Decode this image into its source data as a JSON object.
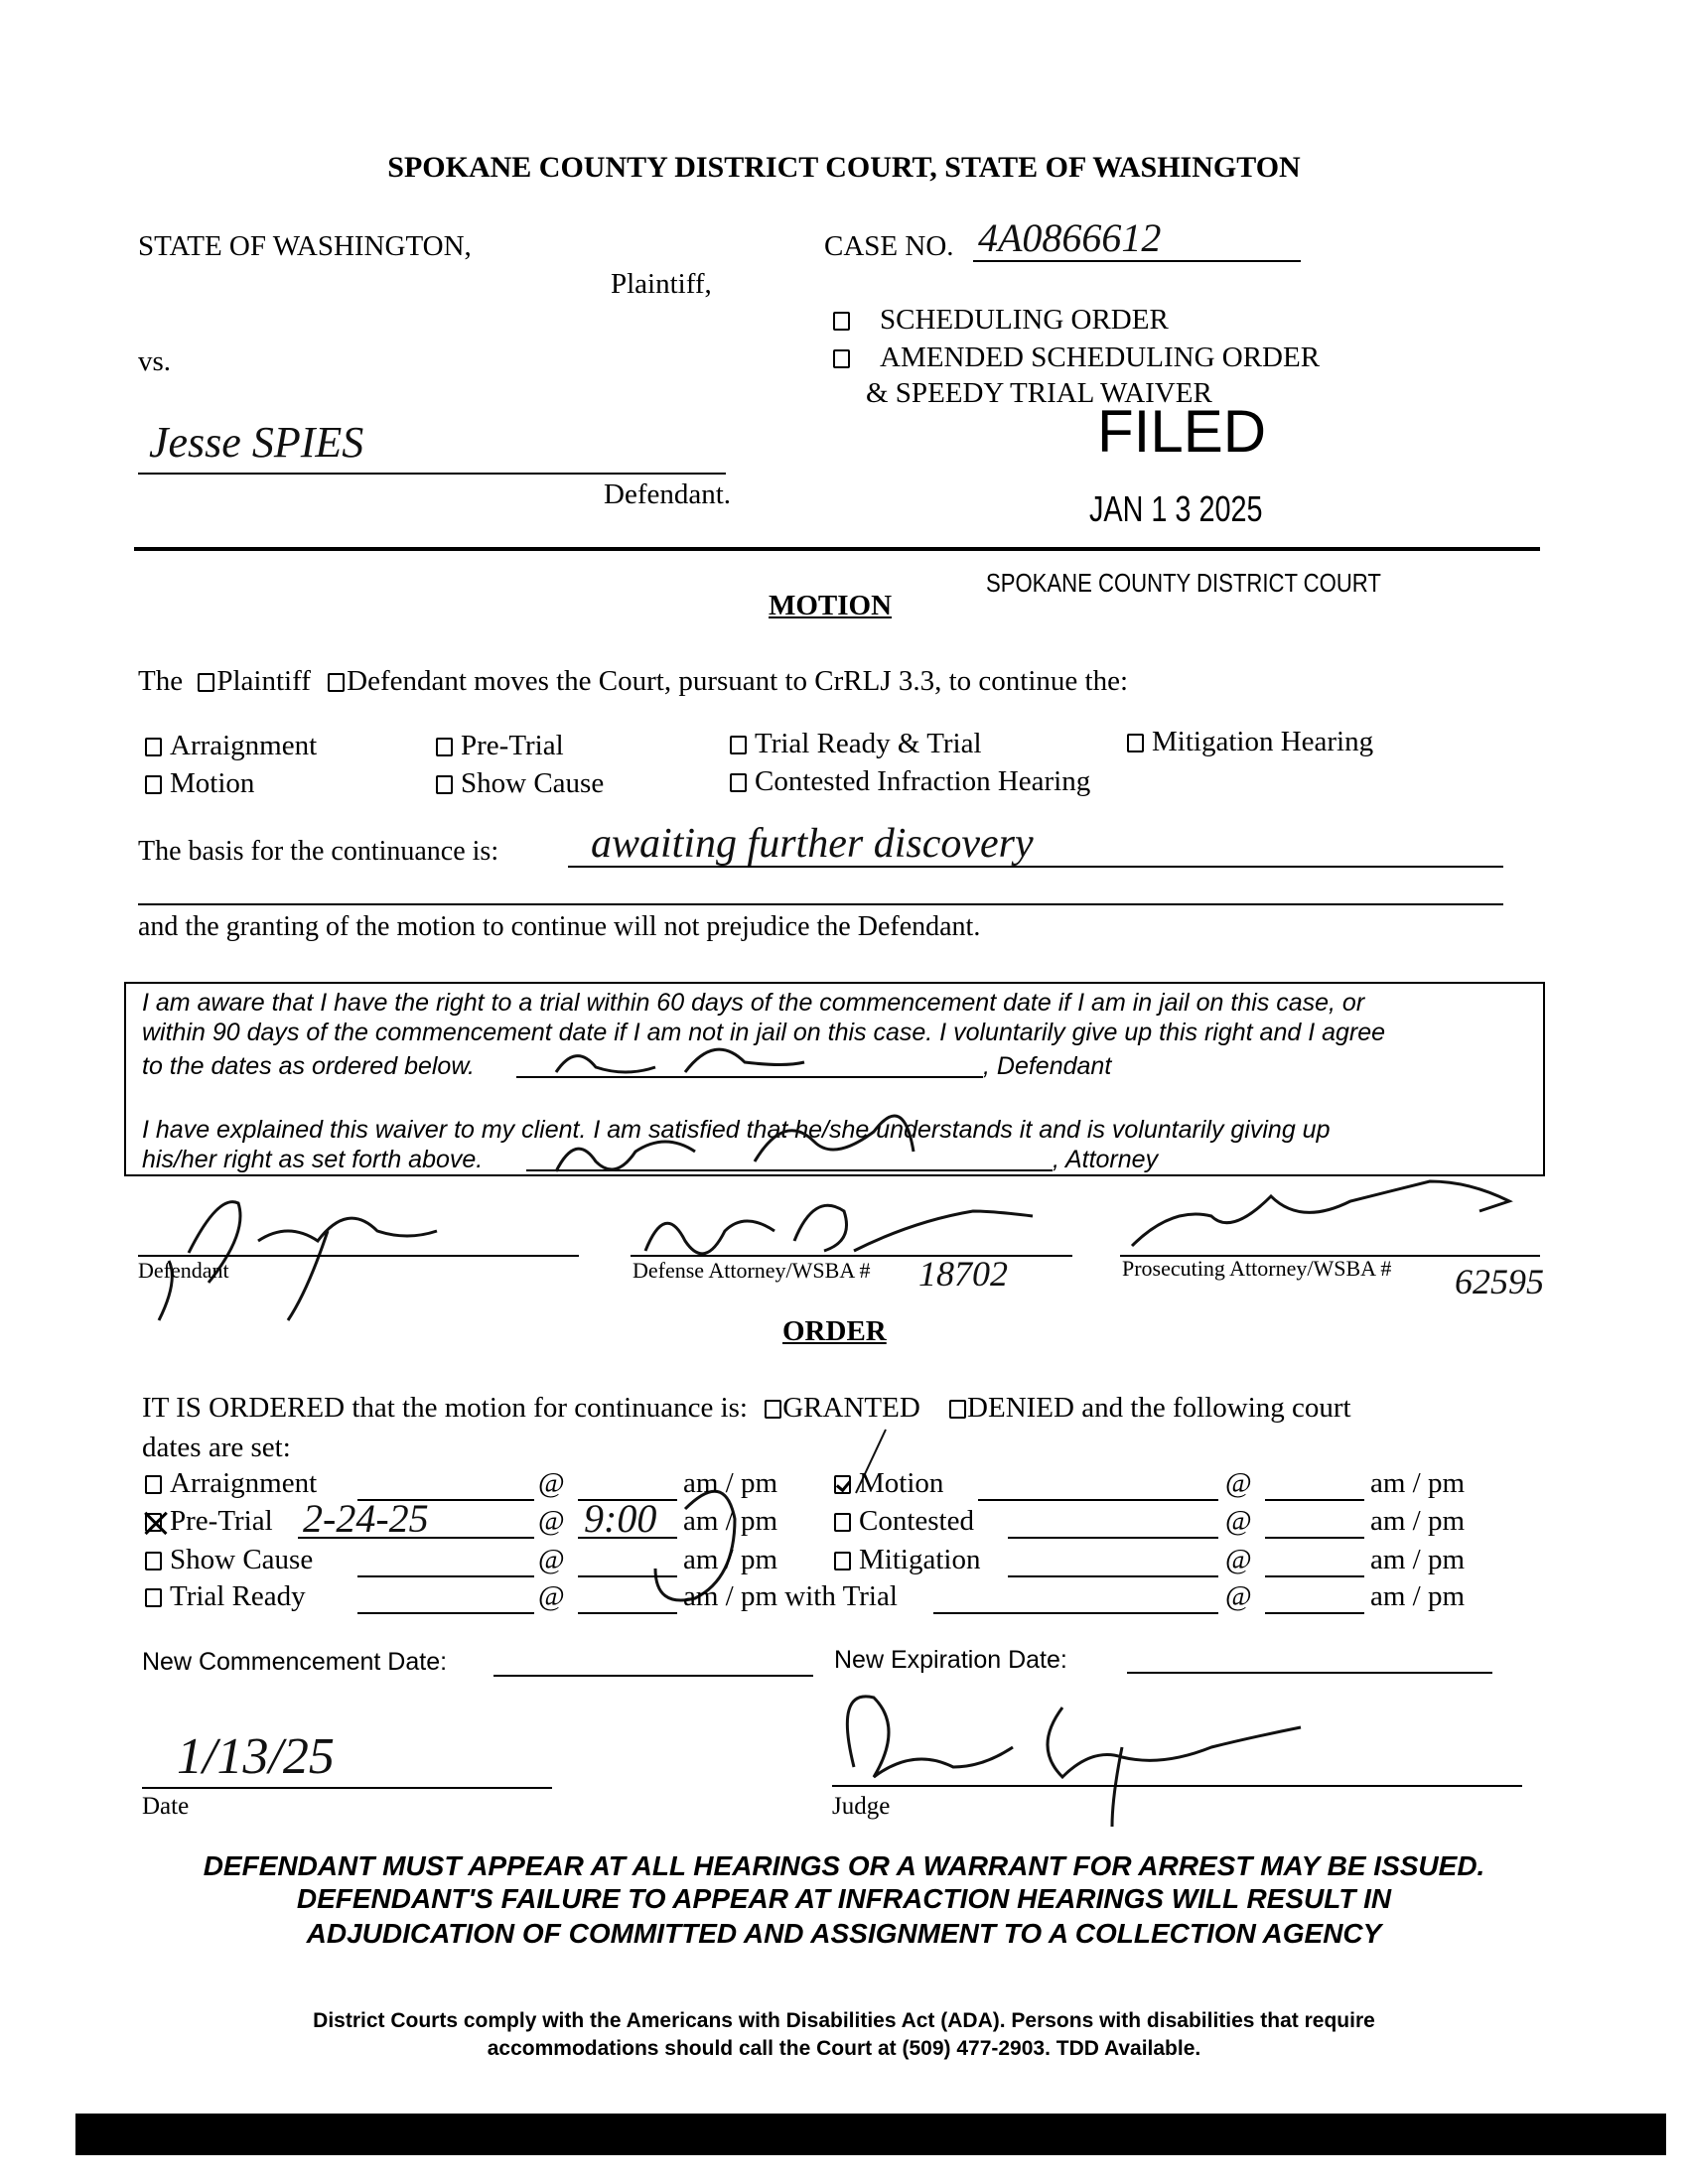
{
  "court_title": "SPOKANE COUNTY DISTRICT COURT, STATE OF WASHINGTON",
  "caption": {
    "plaintiff_name": "STATE OF WASHINGTON,",
    "plaintiff_label": "Plaintiff,",
    "vs": "vs.",
    "defendant_name": "Jesse SPIES",
    "defendant_label": "Defendant.",
    "case_no_label": "CASE NO.",
    "case_no": "4A0866612"
  },
  "order_type": {
    "options": [
      {
        "label": "SCHEDULING ORDER",
        "checked": false
      },
      {
        "label": "AMENDED SCHEDULING ORDER",
        "checked": false
      }
    ],
    "sublabel": "& SPEEDY TRIAL WAIVER"
  },
  "stamp": {
    "filed": "FILED",
    "date": "JAN 1 3 2025",
    "court": "SPOKANE COUNTY DISTRICT COURT"
  },
  "motion": {
    "heading": "MOTION",
    "intro_the": "The",
    "plaintiff": "Plaintiff",
    "defendant": "Defendant moves the Court, pursuant to CrRLJ 3.3, to continue the:",
    "hearings": [
      {
        "label": "Arraignment",
        "checked": false
      },
      {
        "label": "Pre-Trial",
        "checked": false
      },
      {
        "label": "Trial Ready & Trial",
        "checked": false
      },
      {
        "label": "Mitigation Hearing",
        "checked": false
      },
      {
        "label": "Motion",
        "checked": false
      },
      {
        "label": "Show Cause",
        "checked": false
      },
      {
        "label": "Contested Infraction Hearing",
        "checked": false
      }
    ],
    "basis_label": "The basis for the continuance is:",
    "basis_value": "awaiting further discovery",
    "prejudice_text": "and the granting of the motion to continue will not prejudice the Defendant."
  },
  "waiver": {
    "line1": "I am aware that I have the right to a trial within 60 days of the commencement date if I am in jail on this case, or",
    "line2": "within 90 days of the commencement date if I am not in jail on this case.  I voluntarily give up this right and I agree",
    "line3": "to the dates as ordered below.",
    "defendant_suffix": ", Defendant",
    "line4": "I have explained this waiver to my client.  I am satisfied that he/she understands it and is voluntarily giving up",
    "line5": "his/her right as set forth above.",
    "attorney_suffix": ", Attorney"
  },
  "signatures": {
    "defendant_label": "Defendant",
    "defense_label": "Defense Attorney/WSBA #",
    "defense_wsba": "18702",
    "prosecutor_label": "Prosecuting Attorney/WSBA #",
    "prosecutor_wsba": "62595"
  },
  "order": {
    "heading": "ORDER",
    "ordered_text": "IT IS ORDERED that the motion for continuance is:",
    "granted": "GRANTED",
    "denied": "DENIED and the following court",
    "dates_text": "dates are set:",
    "at": "@",
    "ampm": "am / pm",
    "with_trial": "am / pm with Trial",
    "left_rows": [
      {
        "label": "Arraignment",
        "checked": false,
        "date": "",
        "time": ""
      },
      {
        "label": "Pre-Trial",
        "checked": true,
        "date": "2-24-25",
        "time": "9:00"
      },
      {
        "label": "Show Cause",
        "checked": false,
        "date": "",
        "time": ""
      },
      {
        "label": "Trial Ready",
        "checked": false,
        "date": "",
        "time": ""
      }
    ],
    "right_rows": [
      {
        "label": "Motion",
        "checked": true,
        "date": "",
        "time": ""
      },
      {
        "label": "Contested",
        "checked": false,
        "date": "",
        "time": ""
      },
      {
        "label": "Mitigation",
        "checked": false,
        "date": "",
        "time": ""
      }
    ],
    "commencement_label": "New Commencement Date:",
    "commencement_value": "",
    "expiration_label": "New Expiration Date:",
    "expiration_value": "",
    "date_label": "Date",
    "date_value": "1/13/25",
    "judge_label": "Judge"
  },
  "warning": [
    "DEFENDANT MUST APPEAR AT ALL HEARINGS OR A WARRANT FOR ARREST MAY BE ISSUED.",
    "DEFENDANT'S FAILURE TO APPEAR AT INFRACTION HEARINGS WILL RESULT IN",
    "ADJUDICATION OF COMMITTED AND ASSIGNMENT TO A COLLECTION AGENCY"
  ],
  "ada": [
    "District Courts comply with the Americans with Disabilities Act (ADA).  Persons with disabilities that require",
    "accommodations should call the Court at (509) 477-2903.  TDD Available."
  ]
}
